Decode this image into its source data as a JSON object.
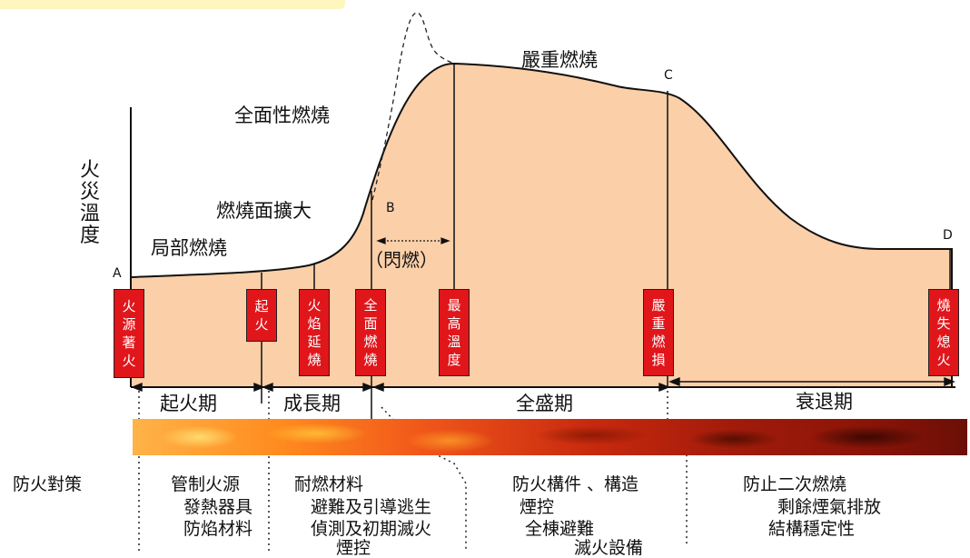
{
  "diagram": {
    "y_axis_label": "火災溫度",
    "curve_labels": {
      "partial_burning": "局部燃燒",
      "expanding_area": "燃燒面擴大",
      "full_burning": "全面性燃燒",
      "severe_burning": "嚴重燃燒"
    },
    "points": {
      "a": "A",
      "b": "B",
      "c": "C",
      "d": "D"
    },
    "flashover": "（閃燃）",
    "stage_boxes": [
      "火源著火",
      "起火",
      "火焰延燒",
      "全面燃燒",
      "最高溫度",
      "嚴重燃損",
      "燒失熄火"
    ],
    "phases": {
      "ignition": "起火期",
      "growth": "成長期",
      "full_development": "全盛期",
      "decay": "衰退期"
    },
    "measures_header": "防火對策",
    "measures": {
      "ignition": [
        "管制火源",
        "發熱器具",
        "防焰材料"
      ],
      "growth": [
        "耐燃材料",
        "避難及引導逃生",
        "偵測及初期滅火",
        "煙控"
      ],
      "full_development": [
        "防火構件 、構造",
        "煙控",
        "全棟避難",
        "滅火設備"
      ],
      "decay": [
        "防止二次燃燒",
        "剩餘煙氣排放",
        "結構穩定性"
      ]
    },
    "colors": {
      "fill": "#fbcfa8",
      "box": "#e0161b",
      "line": "#111111"
    }
  }
}
